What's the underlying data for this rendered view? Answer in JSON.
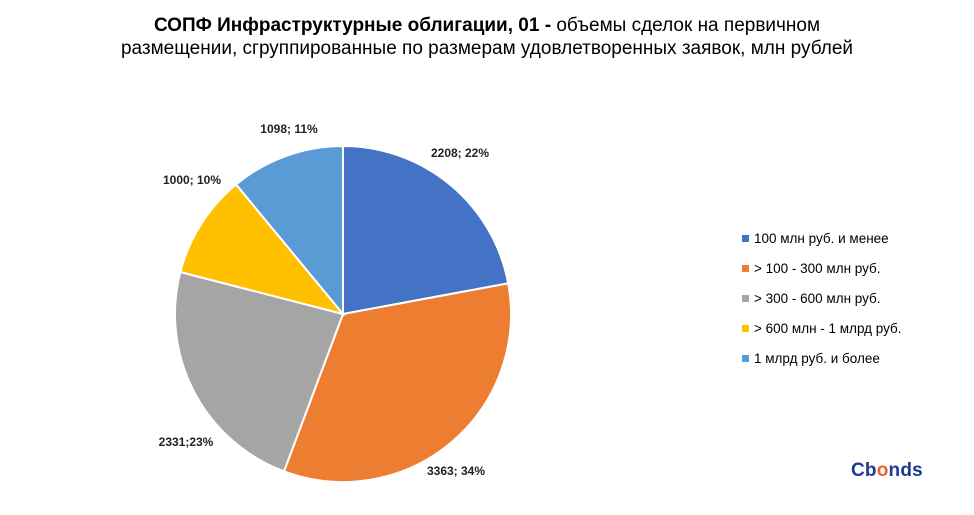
{
  "title": {
    "bold": "СОПФ Инфраструктурные облигации, 01 -",
    "rest_line1": " объемы сделок на первичном",
    "line2": "размещении, сгруппированные по размерам удовлетворенных заявок, млн рублей"
  },
  "chart_data": {
    "type": "pie",
    "title": "СОПФ Инфраструктурные облигации, 01 - объемы сделок на первичном размещении, сгруппированные по размерам удовлетворенных заявок, млн рублей",
    "slices": [
      {
        "name": "100 млн руб. и менее",
        "value": 2208,
        "percent": 22,
        "label": "2208; 22%",
        "color": "#4472c4"
      },
      {
        "name": "> 100 - 300 млн руб.",
        "value": 3363,
        "percent": 34,
        "label": "3363; 34%",
        "color": "#ed7d31"
      },
      {
        "name": "> 300 - 600 млн руб.",
        "value": 2331,
        "percent": 23,
        "label": "2331;23%",
        "color": "#a5a5a5"
      },
      {
        "name": "> 600 млн - 1 млрд руб.",
        "value": 1000,
        "percent": 10,
        "label": "1000; 10%",
        "color": "#ffc000"
      },
      {
        "name": "1 млрд руб. и более",
        "value": 1098,
        "percent": 11,
        "label": "1098; 11%",
        "color": "#5b9bd5"
      }
    ],
    "legend_position": "right"
  },
  "logo": {
    "text_before": "Cb",
    "text_o": "o",
    "text_after": "nds"
  }
}
